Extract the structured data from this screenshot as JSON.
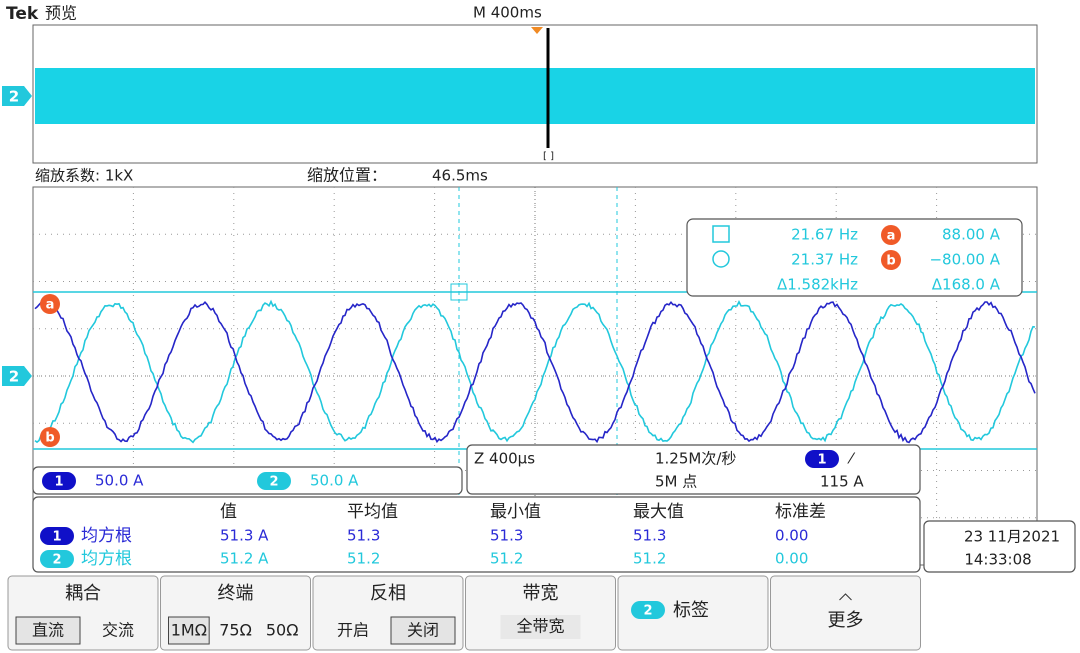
{
  "header": {
    "brand": "Tek",
    "mode": "预览",
    "timebase": "M 400ms"
  },
  "zoom": {
    "factor": "缩放系数: 1kX",
    "position_label": "缩放位置：",
    "position": "46.5ms"
  },
  "markers": {
    "channel": "2",
    "cursor_a": "a",
    "cursor_b": "b",
    "trigger": "[ ]"
  },
  "cursor_readout": {
    "rows": [
      [
        "21.67 Hz",
        "88.00 A"
      ],
      [
        "21.37 Hz",
        "−80.00 A"
      ],
      [
        "Δ1.582kHz",
        "Δ168.0 A"
      ]
    ]
  },
  "channels": [
    {
      "num": "1",
      "scale": "50.0 A"
    },
    {
      "num": "2",
      "scale": "50.0 A"
    }
  ],
  "acquisition": {
    "zoom_time": "Z 400µs",
    "rate": "1.25M次/秒",
    "points": "5M 点",
    "trigger_channel": "1",
    "trigger_slope": "⁄",
    "trigger_level": "115 A"
  },
  "measurements": {
    "headers": [
      "值",
      "平均值",
      "最小值",
      "最大值",
      "标准差"
    ],
    "rows": [
      {
        "channel": "1",
        "name": "均方根",
        "cells": [
          "51.3 A",
          "51.3",
          "51.3",
          "51.3",
          "0.00"
        ]
      },
      {
        "channel": "2",
        "name": "均方根",
        "cells": [
          "51.2 A",
          "51.2",
          "51.2",
          "51.2",
          "0.00"
        ]
      }
    ]
  },
  "datetime": {
    "date": "23 11月2021",
    "time": "14:33:08"
  },
  "buttons": [
    {
      "title": "耦合",
      "options": [
        "直流",
        "交流"
      ]
    },
    {
      "title": "终端",
      "options": [
        "1MΩ",
        "75Ω",
        "50Ω"
      ]
    },
    {
      "title": "反相",
      "options": [
        "开启",
        "关闭"
      ]
    },
    {
      "title": "带宽",
      "options": [
        "全带宽"
      ]
    },
    {
      "title": "标签",
      "channel": "2"
    },
    {
      "title": "更多"
    }
  ]
}
